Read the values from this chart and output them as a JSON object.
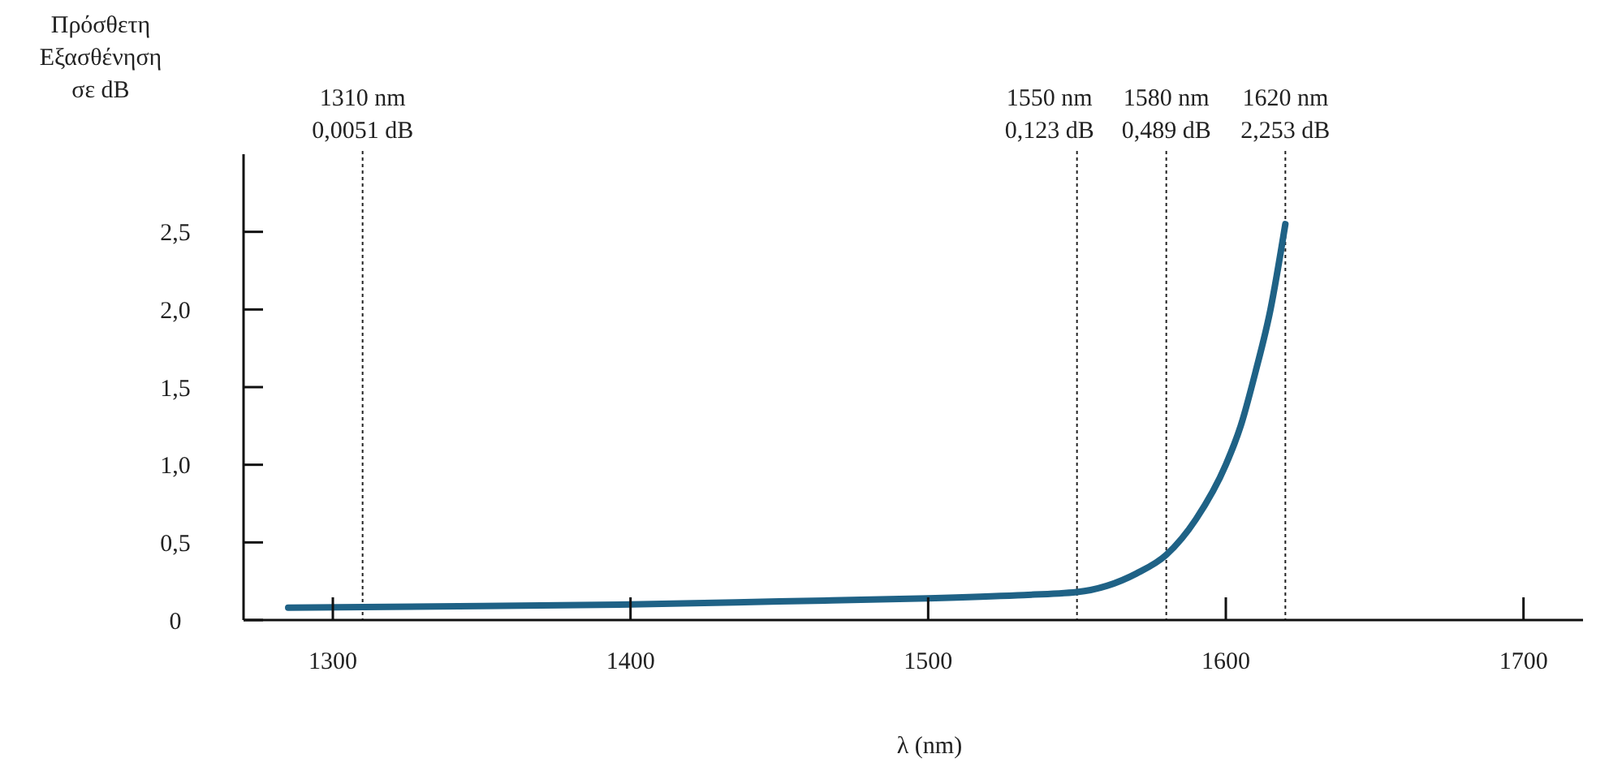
{
  "chart_data": {
    "type": "line",
    "ylabel": "Πρόσθετη\nΕξασθένηση\nσε dB",
    "xlabel": "λ (nm)",
    "x": [
      1285,
      1350,
      1400,
      1450,
      1500,
      1530,
      1550,
      1560,
      1570,
      1580,
      1590,
      1600,
      1605,
      1610,
      1615,
      1620
    ],
    "series": [
      {
        "color": "#1f6286",
        "values": [
          0.08,
          0.09,
          0.1,
          0.12,
          0.14,
          0.16,
          0.18,
          0.22,
          0.3,
          0.42,
          0.65,
          1.0,
          1.25,
          1.6,
          2.0,
          2.55
        ]
      }
    ],
    "xlim": [
      1270,
      1720
    ],
    "ylim": [
      0,
      3.0
    ],
    "xticks": [
      1300,
      1400,
      1500,
      1600,
      1700
    ],
    "yticks": [
      {
        "value": 0,
        "label": "0"
      },
      {
        "value": 0.5,
        "label": "0,5"
      },
      {
        "value": 1,
        "label": "1,0"
      },
      {
        "value": 1.5,
        "label": "1,5"
      },
      {
        "value": 2,
        "label": "2,0"
      },
      {
        "value": 2.5,
        "label": "2,5"
      }
    ],
    "ref_lines": [
      {
        "axis": "x",
        "value": 1310,
        "label": "1310 nm\n0,0051 dB",
        "line_style": "dotted"
      },
      {
        "axis": "x",
        "value": 1550,
        "label": "1550 nm\n0,123 dB",
        "line_style": "dotted"
      },
      {
        "axis": "x",
        "value": 1580,
        "label": "1580 nm\n0,489 dB",
        "line_style": "dotted"
      },
      {
        "axis": "x",
        "value": 1620,
        "label": "1620 nm\n2,253 dB",
        "line_style": "dotted"
      }
    ],
    "grid": false,
    "marker": "none",
    "line_style": "solid"
  }
}
